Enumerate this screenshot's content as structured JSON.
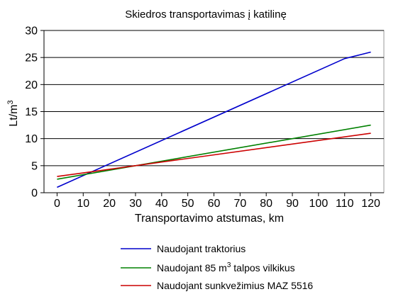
{
  "chart_data": {
    "type": "line",
    "title": "Skiedros transportavimas į katilinę",
    "xlabel": "Transportavimo atstumas, km",
    "ylabel": {
      "base": "Lt/m",
      "sup": "3"
    },
    "xlim": [
      -5,
      125
    ],
    "ylim": [
      0,
      30
    ],
    "x_ticks": [
      0,
      10,
      20,
      30,
      40,
      50,
      60,
      70,
      80,
      90,
      100,
      110,
      120
    ],
    "y_ticks": [
      0,
      5,
      10,
      15,
      20,
      25,
      30
    ],
    "grid": "horizontal",
    "legend_position": "bottom",
    "series": [
      {
        "name": "Naudojant traktorius",
        "color": "#0000cc",
        "points": [
          [
            0,
            1.0
          ],
          [
            110,
            24.8
          ],
          [
            120,
            26.0
          ]
        ]
      },
      {
        "name": "Naudojant 85 m3 talpos vilkikus",
        "name_parts": {
          "pre": "Naudojant 85 m",
          "sup": "3",
          "post": " talpos vilkikus"
        },
        "color": "#008000",
        "points": [
          [
            0,
            2.5
          ],
          [
            120,
            12.5
          ]
        ]
      },
      {
        "name": "Naudojant sunkvežimius MAZ 5516",
        "color": "#cc0000",
        "points": [
          [
            0,
            3.0
          ],
          [
            120,
            11.0
          ]
        ]
      }
    ]
  }
}
